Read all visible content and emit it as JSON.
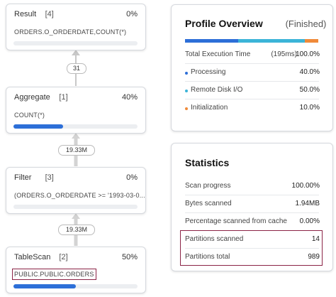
{
  "nodes": [
    {
      "name": "Result",
      "id": "[4]",
      "percent": "0%",
      "detail": "ORDERS.O_ORDERDATE,COUNT(*)"
    },
    {
      "name": "Aggregate",
      "id": "[1]",
      "percent": "40%",
      "detail": "COUNT(*)"
    },
    {
      "name": "Filter",
      "id": "[3]",
      "percent": "0%",
      "detail": "(ORDERS.O_ORDERDATE >= '1993-03-0..."
    },
    {
      "name": "TableScan",
      "id": "[2]",
      "percent": "50%",
      "detail": "PUBLIC.PUBLIC.ORDERS",
      "detail_highlighted": true
    }
  ],
  "edges": [
    {
      "label": "31"
    },
    {
      "label": "19.33M"
    },
    {
      "label": "19.33M"
    }
  ],
  "profile_overview": {
    "title": "Profile Overview",
    "status": "(Finished)",
    "total": {
      "label": "Total Execution Time",
      "time": "(195ms)",
      "value": "100.0%"
    },
    "breakdown": [
      {
        "label": "Processing",
        "value": "40.0%",
        "color": "#2d6fd8"
      },
      {
        "label": "Remote Disk I/O",
        "value": "50.0%",
        "color": "#3cb4d8"
      },
      {
        "label": "Initialization",
        "value": "10.0%",
        "color": "#f08a3a"
      }
    ]
  },
  "statistics": {
    "title": "Statistics",
    "rows": [
      {
        "label": "Scan progress",
        "value": "100.00%"
      },
      {
        "label": "Bytes scanned",
        "value": "1.94MB"
      },
      {
        "label": "Percentage scanned from cache",
        "value": "0.00%"
      },
      {
        "label": "Partitions scanned",
        "value": "14",
        "highlighted": true
      },
      {
        "label": "Partitions total",
        "value": "989",
        "highlighted": true
      }
    ]
  }
}
